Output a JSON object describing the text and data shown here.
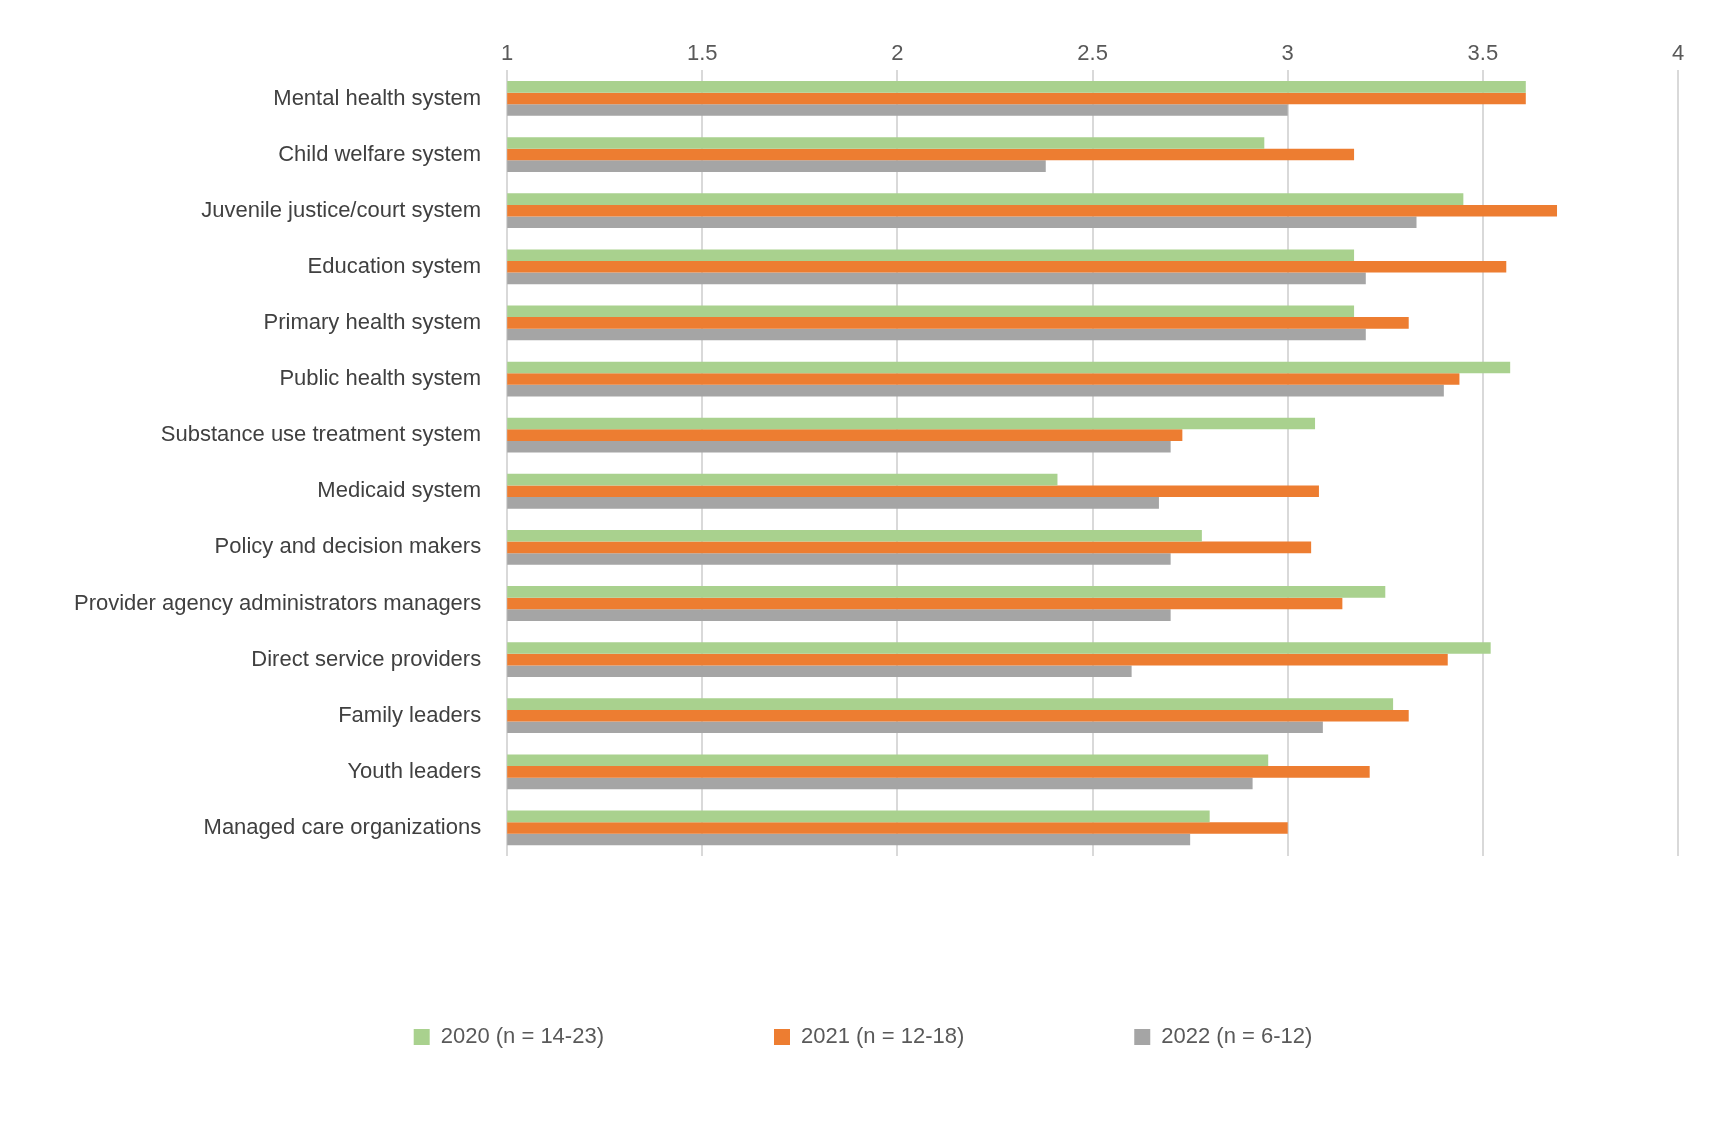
{
  "chart_data": {
    "type": "bar",
    "orientation": "horizontal",
    "categories": [
      "Mental health system",
      "Child welfare system",
      "Juvenile justice/court system",
      "Education system",
      "Primary health system",
      "Public health system",
      "Substance use treatment system",
      "Medicaid system",
      "Policy and decision makers",
      "Provider agency administrators managers",
      "Direct service providers",
      "Family leaders",
      "Youth leaders",
      "Managed care organizations"
    ],
    "series": [
      {
        "name": "2020 (n = 14-23)",
        "color": "#a9d18e",
        "values": [
          3.61,
          2.94,
          3.45,
          3.17,
          3.17,
          3.57,
          3.07,
          2.41,
          2.78,
          3.25,
          3.52,
          3.27,
          2.95,
          2.8
        ]
      },
      {
        "name": "2021 (n = 12-18)",
        "color": "#ed7d31",
        "values": [
          3.61,
          3.17,
          3.69,
          3.56,
          3.31,
          3.44,
          2.73,
          3.08,
          3.06,
          3.14,
          3.41,
          3.31,
          3.21,
          3.0
        ]
      },
      {
        "name": "2022 (n = 6-12)",
        "color": "#a5a5a5",
        "values": [
          3.0,
          2.38,
          3.33,
          3.2,
          3.2,
          3.4,
          2.7,
          2.67,
          2.7,
          2.7,
          2.6,
          3.09,
          2.91,
          2.75
        ]
      }
    ],
    "xlim": [
      1,
      4
    ],
    "xticks": [
      1,
      1.5,
      2,
      2.5,
      3,
      3.5,
      4
    ],
    "grid": "x",
    "legend": "bottom"
  }
}
